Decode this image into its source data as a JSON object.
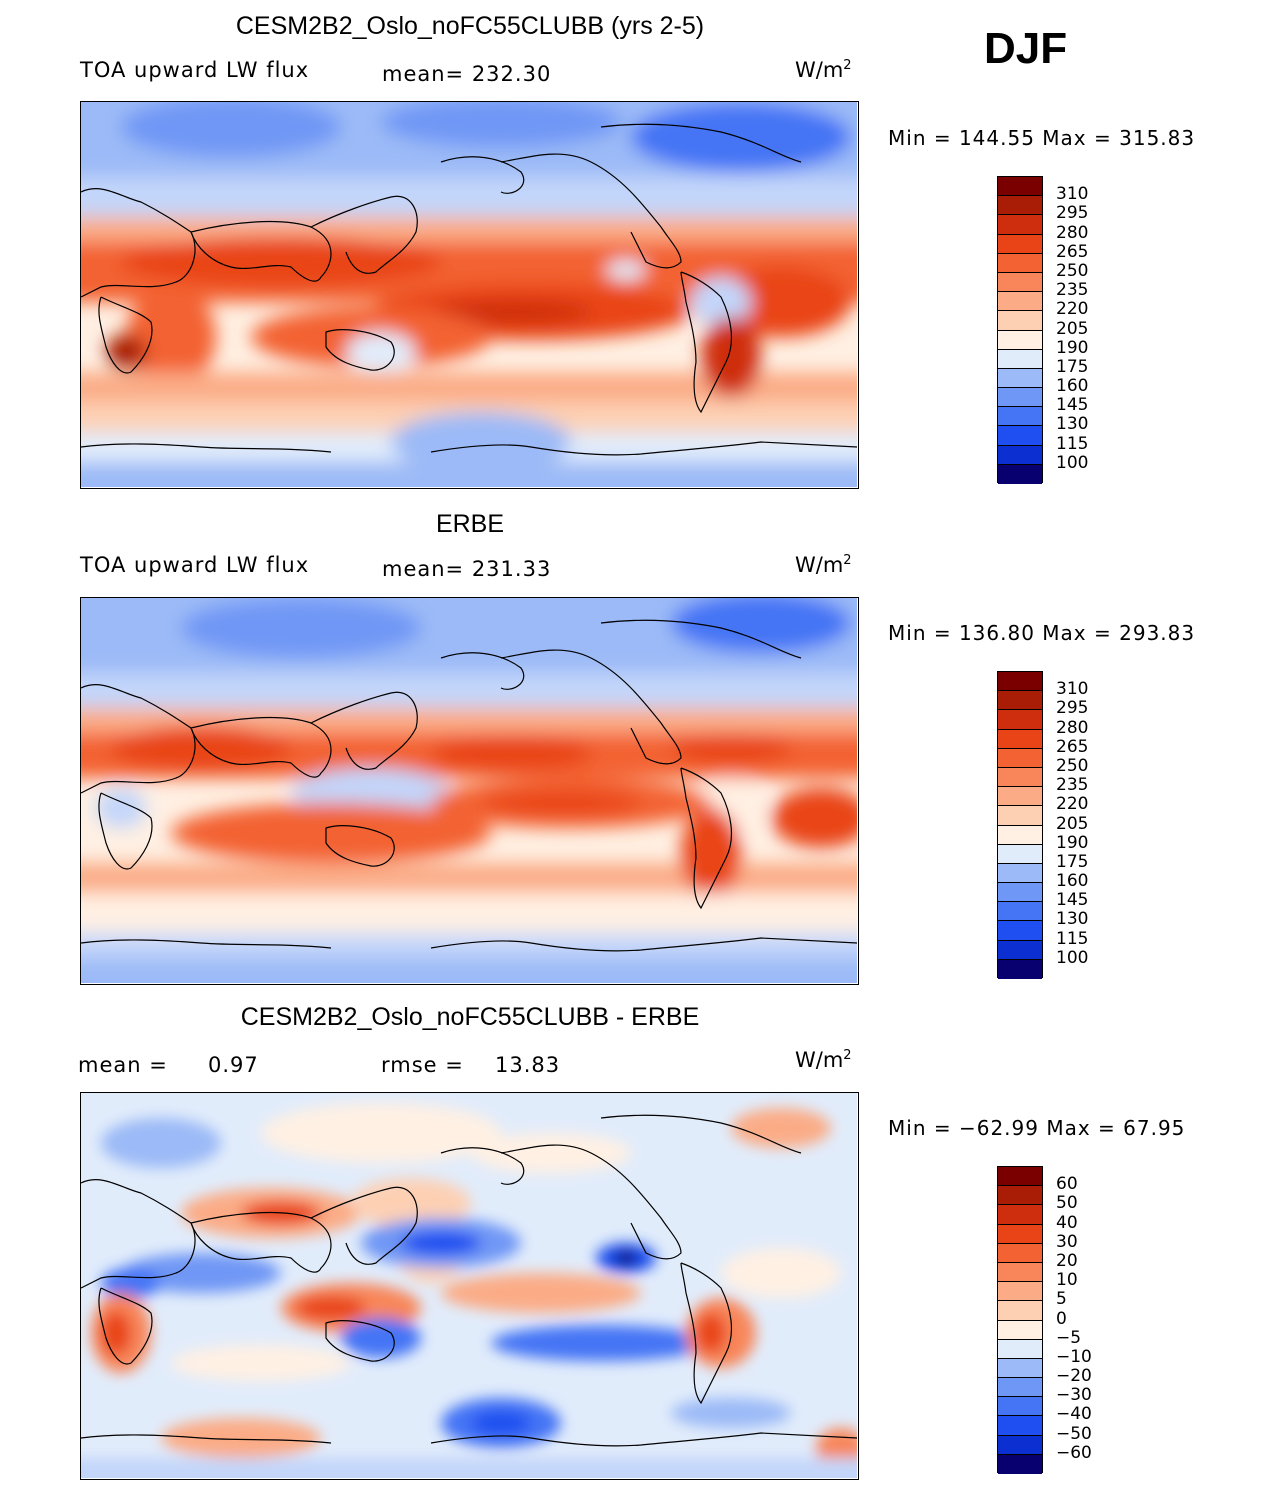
{
  "season": "DJF",
  "palette": [
    "#08006e",
    "#0a1aa0",
    "#0b2fd0",
    "#1f4ff0",
    "#4575f5",
    "#6f97f5",
    "#9bbaf7",
    "#c3d6fa",
    "#e1ecfb",
    "#fff0e3",
    "#fdd0b4",
    "#fbac86",
    "#f8865a",
    "#f36232",
    "#e94418",
    "#cf2e0e",
    "#a91c05",
    "#7a0000"
  ],
  "panels": [
    {
      "title": "CESM2B2_Oslo_noFC55CLUBB (yrs 2-5)",
      "left_label": "TOA upward LW flux",
      "center_label": "mean= 232.30",
      "units": "W/m",
      "units_sup": "2",
      "minmax": "Min  =  144.55  Max  =  315.83",
      "ticks": [
        "310",
        "295",
        "280",
        "265",
        "250",
        "235",
        "220",
        "205",
        "190",
        "175",
        "160",
        "145",
        "130",
        "115",
        "100"
      ],
      "kind": "model"
    },
    {
      "title": "ERBE",
      "left_label": "TOA upward LW flux",
      "center_label": "mean= 231.33",
      "units": "W/m",
      "units_sup": "2",
      "minmax": "Min  =  136.80  Max  =  293.83",
      "ticks": [
        "310",
        "295",
        "280",
        "265",
        "250",
        "235",
        "220",
        "205",
        "190",
        "175",
        "160",
        "145",
        "130",
        "115",
        "100"
      ],
      "kind": "obs"
    },
    {
      "title": "CESM2B2_Oslo_noFC55CLUBB - ERBE",
      "left_label": "mean =",
      "left_value": "0.97",
      "center_label": "rmse =",
      "center_value": "13.83",
      "units": "W/m",
      "units_sup": "2",
      "minmax": "Min  =  −62.99  Max  =   67.95",
      "ticks": [
        "60",
        "50",
        "40",
        "30",
        "20",
        "10",
        "5",
        "0",
        "−5",
        "−10",
        "−20",
        "−30",
        "−40",
        "−50",
        "−60"
      ],
      "kind": "diff"
    }
  ]
}
